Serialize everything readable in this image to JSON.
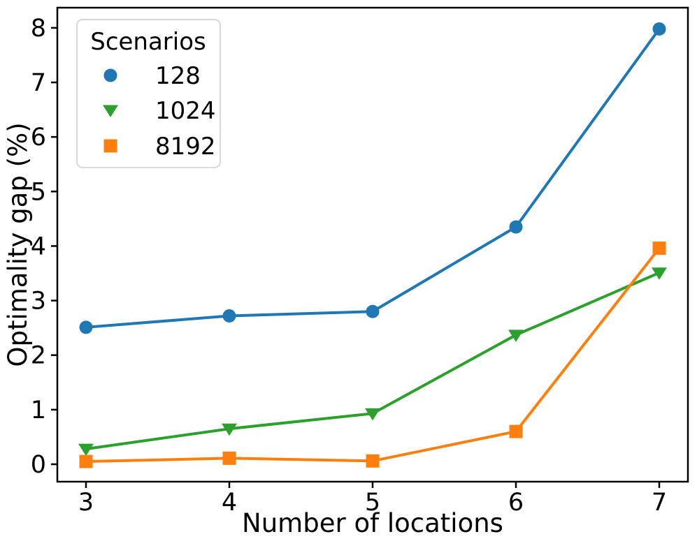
{
  "chart_data": {
    "type": "line",
    "title": "",
    "xlabel": "Number of locations",
    "ylabel": "Optimality gap (%)",
    "x": [
      3,
      4,
      5,
      6,
      7
    ],
    "xticks": [
      "3",
      "4",
      "5",
      "6",
      "7"
    ],
    "yticks": [
      "0",
      "1",
      "2",
      "3",
      "4",
      "5",
      "6",
      "7",
      "8"
    ],
    "ytick_values": [
      0,
      1,
      2,
      3,
      4,
      5,
      6,
      7,
      8
    ],
    "xlim": [
      2.8,
      7.2
    ],
    "ylim": [
      -0.32,
      8.37
    ],
    "grid": false,
    "legend": {
      "title": "Scenarios",
      "position": "upper-left"
    },
    "series": [
      {
        "name": "128",
        "marker": "circle",
        "color": "#1f77b4",
        "values": [
          2.51,
          2.72,
          2.8,
          4.35,
          7.98
        ]
      },
      {
        "name": "1024",
        "marker": "triangle-down",
        "color": "#2ca02c",
        "values": [
          0.28,
          0.65,
          0.93,
          2.37,
          3.51
        ]
      },
      {
        "name": "8192",
        "marker": "square",
        "color": "#ff7f0e",
        "values": [
          0.05,
          0.11,
          0.06,
          0.6,
          3.96
        ]
      }
    ],
    "style": {
      "spine_color": "#000000",
      "background": "#ffffff",
      "legend_border": "#cccccc",
      "line_width": 4
    }
  }
}
